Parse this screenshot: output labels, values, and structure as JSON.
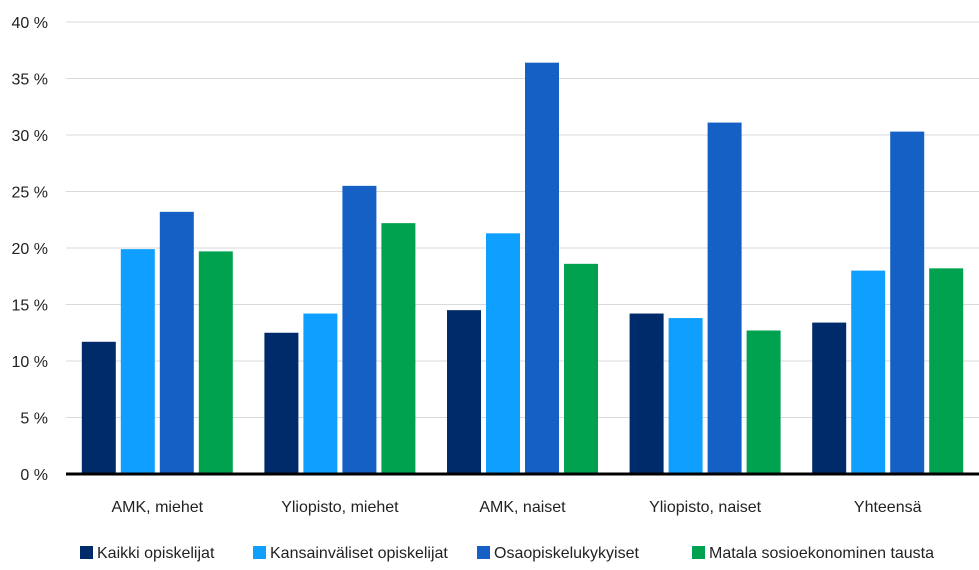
{
  "chart_data": {
    "type": "bar",
    "categories": [
      "AMK, miehet",
      "Yliopisto, miehet",
      "AMK, naiset",
      "Yliopisto, naiset",
      "Yhteensä"
    ],
    "series": [
      {
        "name": "Kaikki opiskelijat",
        "color": "#002b6b",
        "values": [
          11.7,
          12.5,
          14.5,
          14.2,
          13.4
        ]
      },
      {
        "name": "Kansainväliset opiskelijat",
        "color": "#0fa0ff",
        "values": [
          19.9,
          14.2,
          21.3,
          13.8,
          18.0
        ]
      },
      {
        "name": "Osaopiskelukykyiset",
        "color": "#1560c4",
        "values": [
          23.2,
          25.5,
          36.4,
          31.1,
          30.3
        ]
      },
      {
        "name": "Matala sosioekonominen tausta",
        "color": "#00a24f",
        "values": [
          19.7,
          22.2,
          18.6,
          12.7,
          18.2
        ]
      }
    ],
    "ylim": [
      0,
      40
    ],
    "yticks": [
      "0 %",
      "5 %",
      "10 %",
      "15 %",
      "20 %",
      "25 %",
      "30 %",
      "35 %",
      "40 %"
    ],
    "ytick_values": [
      0,
      5,
      10,
      15,
      20,
      25,
      30,
      35,
      40
    ],
    "grid": true,
    "legend_position": "bottom"
  }
}
